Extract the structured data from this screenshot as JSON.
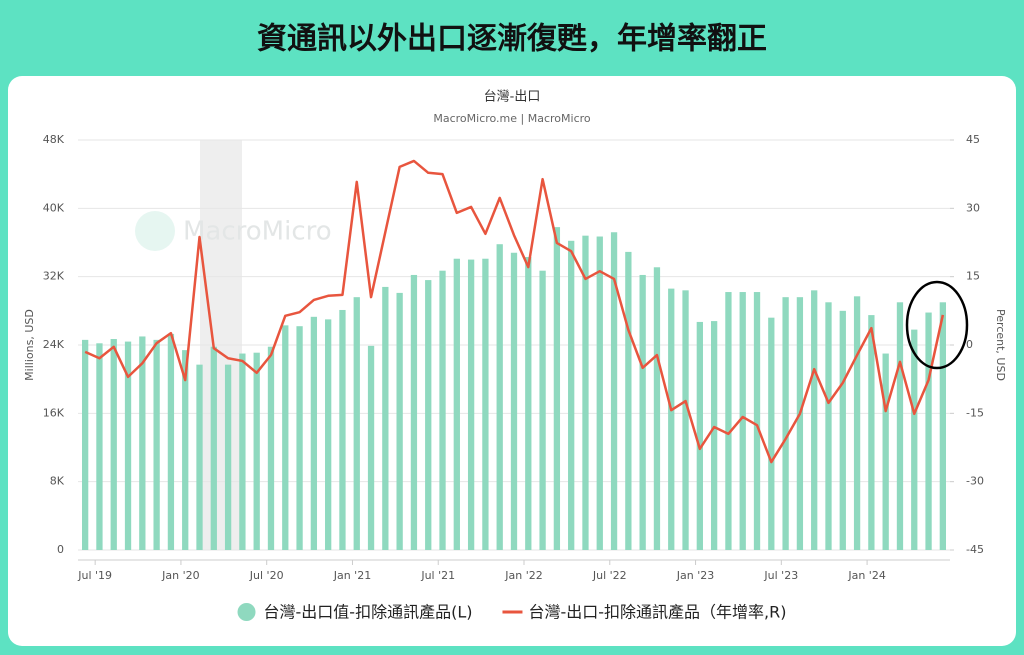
{
  "header": {
    "title": "資通訊以外出口逐漸復甦，年增率翻正"
  },
  "chart_data": {
    "type": "bar",
    "title": "台灣-出口",
    "subtitle": "MacroMicro.me | MacroMicro",
    "watermark": "MacroMicro",
    "y_label": "Millions, USD",
    "y2_label": "Percent, USD",
    "categories": [
      null,
      "Jul '19",
      null,
      null,
      null,
      null,
      null,
      "Jan '20",
      null,
      null,
      null,
      null,
      null,
      "Jul '20",
      null,
      null,
      null,
      null,
      null,
      "Jan '21",
      null,
      null,
      null,
      null,
      null,
      "Jul '21",
      null,
      null,
      null,
      null,
      null,
      "Jan '22",
      null,
      null,
      null,
      null,
      null,
      "Jul '22",
      null,
      null,
      null,
      null,
      null,
      "Jan '23",
      null,
      null,
      null,
      null,
      null,
      "Jul '23",
      null,
      null,
      null,
      null,
      null,
      "Jan '24",
      null,
      null,
      null,
      null,
      null
    ],
    "ylim": [
      0,
      48000
    ],
    "yticks": [
      0,
      {
        "value": 8000,
        "label": "8K"
      },
      {
        "value": 16000,
        "label": "16K"
      },
      {
        "value": 24000,
        "label": "24K"
      },
      {
        "value": 32000,
        "label": "32K"
      },
      {
        "value": 40000,
        "label": "40K"
      },
      {
        "value": 48000,
        "label": "48K"
      }
    ],
    "y2lim": [
      -45,
      45
    ],
    "y2ticks": [
      -45,
      -30,
      -15,
      0,
      15,
      30,
      45
    ],
    "grid": true,
    "series": [
      {
        "name": "台灣-出口值-扣除通訊產品(L)",
        "type": "bar",
        "color": "#8fd9bf",
        "values": [
          24600,
          24200,
          24700,
          24400,
          25000,
          24600,
          25300,
          23400,
          21700,
          23800,
          21700,
          23000,
          23100,
          23800,
          26300,
          26200,
          27300,
          27000,
          28100,
          29600,
          23900,
          30800,
          30100,
          32200,
          31600,
          32700,
          34100,
          34000,
          34100,
          35800,
          34800,
          34300,
          32700,
          37800,
          36200,
          36800,
          36700,
          37200,
          34900,
          32200,
          33100,
          30600,
          30400,
          26700,
          26800,
          30200,
          30200,
          30200,
          27200,
          29600,
          29600,
          30400,
          29000,
          28000,
          29700,
          27500,
          23000,
          29000,
          25800,
          27800,
          29000
        ]
      },
      {
        "name": "台灣-出口-扣除通訊產品（年增率,R)",
        "type": "line",
        "axis": "y2",
        "color": "#e8553e",
        "values": [
          -1.5,
          -2.9,
          -0.4,
          -7.0,
          -4.0,
          0.4,
          2.6,
          -7.7,
          23.7,
          -0.7,
          -2.9,
          -3.5,
          -6.1,
          -2.2,
          6.4,
          7.2,
          9.9,
          10.8,
          11.0,
          35.8,
          10.5,
          24.8,
          39.1,
          40.4,
          37.8,
          37.5,
          29.0,
          30.3,
          24.4,
          32.3,
          24.1,
          17.1,
          36.4,
          22.4,
          20.6,
          14.5,
          16.2,
          14.5,
          3.3,
          -5.0,
          -2.2,
          -14.3,
          -12.3,
          -22.8,
          -18.0,
          -19.5,
          -15.8,
          -17.6,
          -25.7,
          -20.6,
          -15.1,
          -5.3,
          -12.7,
          -8.3,
          -2.2,
          3.7,
          -14.5,
          -3.7,
          -15.1,
          -7.7,
          6.6
        ]
      }
    ]
  }
}
